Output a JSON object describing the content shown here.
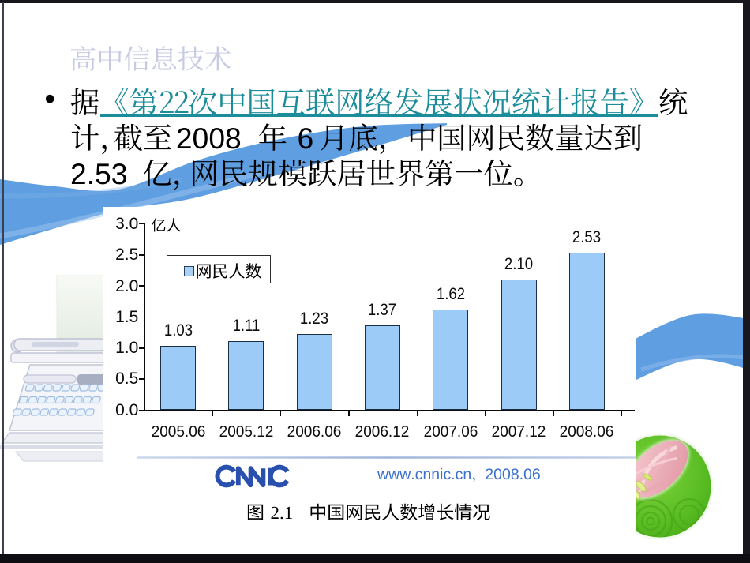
{
  "slide": {
    "header": "高中信息技术",
    "bullet_marker": "•",
    "paragraph": {
      "prefix": "据",
      "link_text": "《第22次中国互联网络发展状况统计报告》",
      "suffix": "统计，截至 2008 年 6 月底，中国网民数量达到 2.53 亿，网民规模跃居世界第一位。"
    },
    "colors": {
      "link": "#1b8c99",
      "header_text": "#c7cae3",
      "wave_blue": "#5f9fe1",
      "text": "#000000"
    }
  },
  "chart_data": {
    "type": "bar",
    "title": "图 2.1  中国网民人数增长情况",
    "unit_label": "亿人",
    "legend_label": "网民人数",
    "categories": [
      "2005.06",
      "2005.12",
      "2006.06",
      "2006.12",
      "2007.06",
      "2007.12",
      "2008.06"
    ],
    "values": [
      1.03,
      1.11,
      1.23,
      1.37,
      1.62,
      2.1,
      2.53
    ],
    "yticks": [
      0.0,
      0.5,
      1.0,
      1.5,
      2.0,
      2.5,
      3.0
    ],
    "ylim": [
      0,
      3
    ],
    "grid": false,
    "legend_position": "upper-left",
    "bar_color": "#9dcbf7",
    "source_logo": "CNNIC",
    "source_note": "www.cnnic.cn，2008.06"
  }
}
